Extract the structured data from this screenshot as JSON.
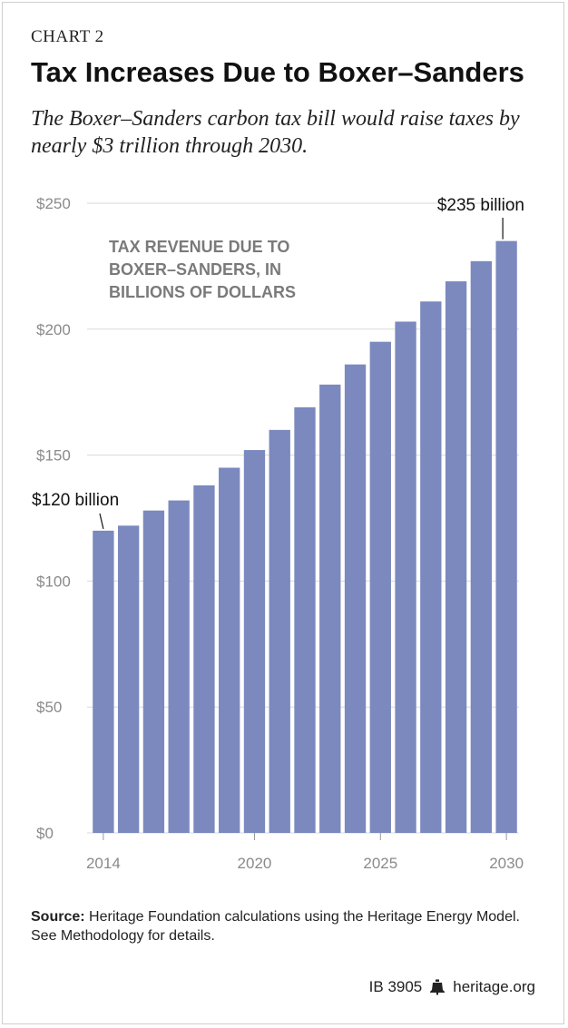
{
  "header": {
    "kicker": "CHART 2",
    "title": "Tax Increases Due to Boxer–Sanders",
    "subtitle": "The Boxer–Sanders carbon tax bill would raise taxes by nearly $3 trillion through 2030."
  },
  "chart_data": {
    "type": "bar",
    "title": "",
    "xlabel": "",
    "ylabel": "",
    "annotation_label": "TAX REVENUE DUE TO BOXER–SANDERS, IN BILLIONS OF DOLLARS",
    "annotation_lines": [
      "TAX REVENUE DUE TO",
      "BOXER–SANDERS, IN",
      "BILLIONS OF DOLLARS"
    ],
    "categories": [
      2014,
      2015,
      2016,
      2017,
      2018,
      2019,
      2020,
      2021,
      2022,
      2023,
      2024,
      2025,
      2026,
      2027,
      2028,
      2029,
      2030
    ],
    "values": [
      120,
      122,
      128,
      132,
      138,
      145,
      152,
      160,
      169,
      178,
      186,
      195,
      203,
      211,
      219,
      227,
      235
    ],
    "ylim": [
      0,
      250
    ],
    "yticks": [
      0,
      50,
      100,
      150,
      200,
      250
    ],
    "ytick_labels": [
      "$0",
      "$50",
      "$100",
      "$150",
      "$200",
      "$250"
    ],
    "xticks": [
      2014,
      2020,
      2025,
      2030
    ],
    "xtick_labels": [
      "2014",
      "2020",
      "2025",
      "2030"
    ],
    "data_labels": [
      {
        "category": 2014,
        "text": "$120 billion"
      },
      {
        "category": 2030,
        "text": "$235 billion"
      }
    ],
    "grid": true,
    "legend": "none",
    "colors": {
      "bar": "#7b89bf",
      "grid": "#d9d9d9",
      "axis_text": "#8a8a8a",
      "annotation_text": "#7a7a7a"
    }
  },
  "footer": {
    "source_label": "Source:",
    "source_text": "Heritage Foundation calculations using the Heritage Energy Model. See Methodology for details.",
    "report_id": "IB 3905",
    "site": "heritage.org",
    "bell_icon": "liberty-bell-icon"
  }
}
